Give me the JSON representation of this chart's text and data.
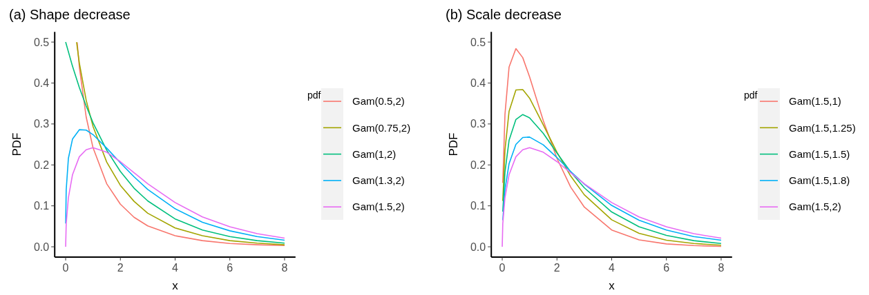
{
  "chart_data": [
    {
      "type": "line",
      "title": "(a) Shape decrease",
      "xlabel": "x",
      "ylabel": "PDF",
      "legend_title": "pdf",
      "legend": "right",
      "grid": false,
      "xlim": [
        -0.4,
        8.4
      ],
      "ylim": [
        -0.025,
        0.525
      ],
      "xticks": [
        0,
        2,
        4,
        6,
        8
      ],
      "yticks": [
        {
          "value": 0,
          "label": "0.0"
        },
        0.1,
        0.2,
        0.3,
        0.4,
        0.5
      ],
      "series": [
        {
          "name": "Gam(0.5,2)",
          "color": "#f8766d",
          "x": [
            0.42,
            0.5,
            0.75,
            1,
            1.5,
            2,
            2.5,
            3,
            4,
            5,
            6,
            7,
            8
          ],
          "values": [
            0.499,
            0.439,
            0.317,
            0.242,
            0.154,
            0.104,
            0.072,
            0.051,
            0.027,
            0.015,
            0.008,
            0.005,
            0.003
          ]
        },
        {
          "name": "Gam(0.75,2)",
          "color": "#a3a500",
          "x": [
            0.4,
            0.5,
            0.75,
            1,
            1.5,
            2,
            2.5,
            3,
            4,
            5,
            6,
            7,
            8
          ],
          "values": [
            0.5,
            0.449,
            0.358,
            0.294,
            0.207,
            0.15,
            0.111,
            0.082,
            0.046,
            0.027,
            0.015,
            0.009,
            0.005
          ]
        },
        {
          "name": "Gam(1,2)",
          "color": "#00bf7d",
          "x": [
            0,
            0.25,
            0.5,
            0.75,
            1,
            1.5,
            2,
            2.5,
            3,
            4,
            5,
            6,
            7,
            8
          ],
          "values": [
            0.5,
            0.441,
            0.389,
            0.344,
            0.303,
            0.236,
            0.184,
            0.143,
            0.112,
            0.068,
            0.041,
            0.025,
            0.015,
            0.009
          ]
        },
        {
          "name": "Gam(1.3,2)",
          "color": "#00b0f6",
          "x": [
            0.001,
            0.02,
            0.1,
            0.25,
            0.5,
            0.75,
            1,
            1.5,
            2,
            2.5,
            3,
            4,
            5,
            6,
            7,
            8
          ],
          "values": [
            0.057,
            0.139,
            0.216,
            0.263,
            0.286,
            0.285,
            0.274,
            0.241,
            0.205,
            0.171,
            0.14,
            0.093,
            0.06,
            0.039,
            0.025,
            0.016
          ]
        },
        {
          "name": "Gam(1.5,2)",
          "color": "#e76bf3",
          "x": [
            0,
            0.02,
            0.1,
            0.25,
            0.5,
            0.75,
            1,
            1.5,
            2,
            2.5,
            3,
            4,
            5,
            6,
            7,
            8
          ],
          "values": [
            0,
            0.056,
            0.12,
            0.176,
            0.22,
            0.237,
            0.242,
            0.231,
            0.208,
            0.181,
            0.154,
            0.108,
            0.073,
            0.049,
            0.032,
            0.021
          ]
        }
      ]
    },
    {
      "type": "line",
      "title": "(b) Scale decrease",
      "xlabel": "x",
      "ylabel": "PDF",
      "legend_title": "pdf",
      "legend": "right",
      "grid": false,
      "xlim": [
        -0.4,
        8.4
      ],
      "ylim": [
        -0.025,
        0.525
      ],
      "xticks": [
        0,
        2,
        4,
        6,
        8
      ],
      "yticks": [
        {
          "value": 0,
          "label": "0.0"
        },
        0.1,
        0.2,
        0.3,
        0.4,
        0.5
      ],
      "series": [
        {
          "name": "Gam(1.5,1)",
          "color": "#f8766d",
          "x": [
            0.02,
            0.1,
            0.25,
            0.5,
            0.75,
            1,
            1.5,
            2,
            2.5,
            3,
            4,
            5,
            6,
            7,
            8
          ],
          "values": [
            0.156,
            0.323,
            0.439,
            0.484,
            0.462,
            0.415,
            0.308,
            0.216,
            0.146,
            0.097,
            0.041,
            0.017,
            0.007,
            0.003,
            0.001
          ]
        },
        {
          "name": "Gam(1.5,1.25)",
          "color": "#a3a500",
          "x": [
            0.02,
            0.1,
            0.25,
            0.5,
            0.75,
            1,
            1.5,
            2,
            2.5,
            3,
            4,
            5,
            6,
            7,
            8
          ],
          "values": [
            0.112,
            0.236,
            0.331,
            0.383,
            0.384,
            0.363,
            0.298,
            0.231,
            0.173,
            0.127,
            0.066,
            0.033,
            0.016,
            0.008,
            0.004
          ]
        },
        {
          "name": "Gam(1.5,1.5)",
          "color": "#00bf7d",
          "x": [
            0.02,
            0.1,
            0.25,
            0.5,
            0.75,
            1,
            1.5,
            2,
            2.5,
            3,
            4,
            5,
            6,
            7,
            8
          ],
          "values": [
            0.086,
            0.182,
            0.26,
            0.311,
            0.323,
            0.315,
            0.277,
            0.229,
            0.183,
            0.144,
            0.085,
            0.049,
            0.028,
            0.015,
            0.008
          ]
        },
        {
          "name": "Gam(1.5,1.8)",
          "color": "#00b0f6",
          "x": [
            0.02,
            0.1,
            0.25,
            0.5,
            0.75,
            1,
            1.5,
            2,
            2.5,
            3,
            4,
            5,
            6,
            7,
            8
          ],
          "values": [
            0.065,
            0.14,
            0.203,
            0.25,
            0.267,
            0.268,
            0.249,
            0.218,
            0.184,
            0.153,
            0.101,
            0.065,
            0.041,
            0.025,
            0.016
          ]
        },
        {
          "name": "Gam(1.5,2)",
          "color": "#e76bf3",
          "x": [
            0,
            0.02,
            0.1,
            0.25,
            0.5,
            0.75,
            1,
            1.5,
            2,
            2.5,
            3,
            4,
            5,
            6,
            7,
            8
          ],
          "values": [
            0,
            0.056,
            0.12,
            0.176,
            0.22,
            0.237,
            0.242,
            0.231,
            0.208,
            0.181,
            0.154,
            0.108,
            0.073,
            0.049,
            0.032,
            0.021
          ]
        }
      ]
    }
  ]
}
